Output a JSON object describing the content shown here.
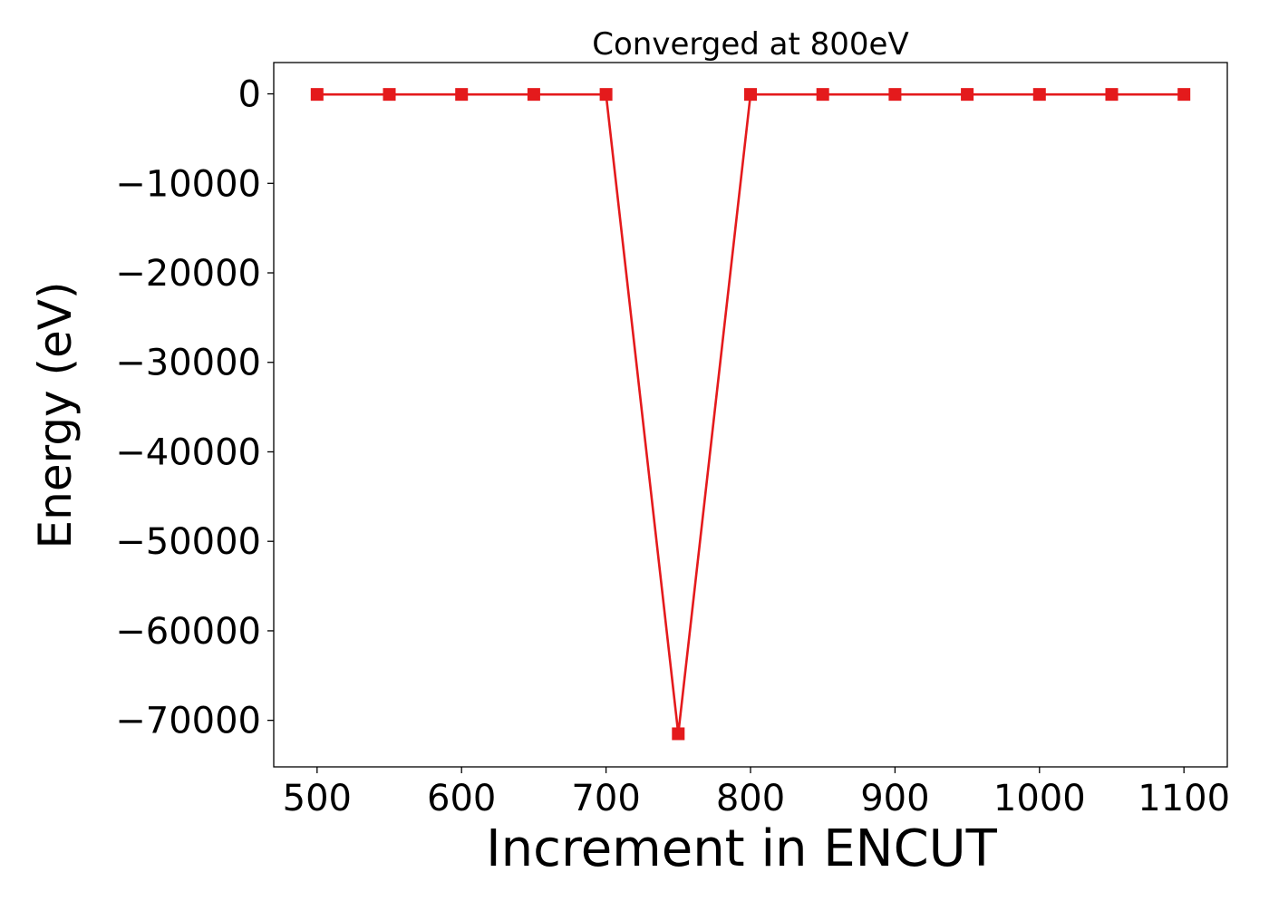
{
  "chart_data": {
    "type": "line",
    "title": "Converged at 800eV",
    "xlabel": "Increment in ENCUT",
    "ylabel": "Energy (eV)",
    "x": [
      500,
      550,
      600,
      650,
      700,
      750,
      800,
      850,
      900,
      950,
      1000,
      1050,
      1100
    ],
    "series": [
      {
        "values": [
          -60,
          -60,
          -60,
          -60,
          -60,
          -71500,
          -60,
          -60,
          -60,
          -60,
          -60,
          -60,
          -60
        ],
        "color": "#e41a1c",
        "marker": "square"
      }
    ],
    "xticks": [
      500,
      600,
      700,
      800,
      900,
      1000,
      1100
    ],
    "yticks": [
      0,
      -10000,
      -20000,
      -30000,
      -40000,
      -50000,
      -60000,
      -70000
    ],
    "xlim": [
      470,
      1130
    ],
    "ylim": [
      -75200,
      3500
    ],
    "grid": false,
    "legend": "none"
  }
}
